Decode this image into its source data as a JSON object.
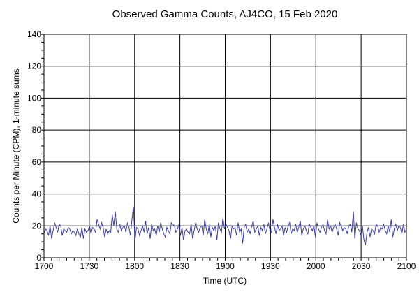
{
  "chart_data": {
    "type": "line",
    "title": "Observed Gamma Counts, AJ4CO, 15 Feb 2020",
    "xlabel": "Time (UTC)",
    "ylabel": "Counts per Minute (CPM), 1-minute sums",
    "x_tick_labels": [
      "1700",
      "1730",
      "1800",
      "1830",
      "1900",
      "1930",
      "2000",
      "2030",
      "2100"
    ],
    "y_tick_labels": [
      "0",
      "20",
      "40",
      "60",
      "80",
      "100",
      "120",
      "140"
    ],
    "xlim_minutes": [
      0,
      240
    ],
    "ylim": [
      0,
      140
    ],
    "grid": true,
    "line_color": "#3a3aa0",
    "series": [
      {
        "values": [
          15,
          18,
          17,
          14,
          20,
          12,
          17,
          22,
          19,
          16,
          21,
          20,
          14,
          18,
          17,
          16,
          19,
          18,
          15,
          17,
          16,
          14,
          18,
          15,
          13,
          19,
          12,
          18,
          16,
          17,
          20,
          15,
          19,
          18,
          16,
          24,
          21,
          18,
          22,
          19,
          13,
          18,
          15,
          17,
          16,
          27,
          20,
          29,
          18,
          16,
          21,
          17,
          19,
          20,
          16,
          22,
          19,
          14,
          24,
          32,
          11,
          19,
          18,
          14,
          17,
          20,
          16,
          23,
          15,
          19,
          12,
          21,
          17,
          18,
          14,
          20,
          16,
          22,
          18,
          15,
          13,
          19,
          17,
          15,
          22,
          21,
          20,
          16,
          18,
          21,
          14,
          19,
          11,
          17,
          18,
          16,
          15,
          21,
          12,
          17,
          22,
          18,
          16,
          19,
          20,
          14,
          24,
          18,
          15,
          21,
          13,
          19,
          17,
          20,
          11,
          22,
          18,
          16,
          25,
          18,
          21,
          19,
          17,
          12,
          20,
          18,
          19,
          14,
          22,
          16,
          18,
          9,
          19,
          21,
          16,
          18,
          15,
          20,
          23,
          16,
          18,
          20,
          14,
          19,
          17,
          21,
          15,
          18,
          22,
          17,
          16,
          24,
          19,
          15,
          21,
          17,
          18,
          20,
          14,
          19,
          16,
          20,
          22,
          15,
          18,
          17,
          21,
          16,
          19,
          23,
          14,
          18,
          20,
          17,
          15,
          21,
          19,
          17,
          20,
          13,
          22,
          18,
          16,
          19,
          21,
          17,
          15,
          24,
          18,
          20,
          16,
          19,
          21,
          18,
          14,
          22,
          20,
          17,
          19,
          18,
          15,
          20,
          21,
          16,
          29,
          12,
          22,
          18,
          17,
          14,
          20,
          11,
          8,
          16,
          19,
          13,
          18,
          17,
          15,
          21,
          20,
          16,
          19,
          18,
          21,
          17,
          15,
          20,
          16,
          24,
          13,
          18,
          21,
          17,
          20,
          19,
          15,
          21,
          16,
          18
        ]
      }
    ]
  }
}
